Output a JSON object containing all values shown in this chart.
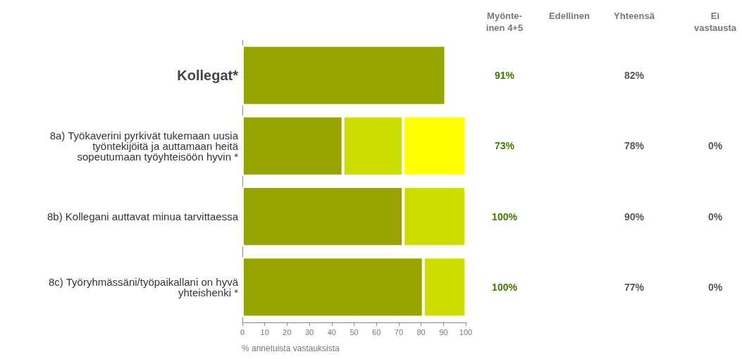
{
  "chart_data": [
    {
      "type": "bar",
      "orientation": "horizontal",
      "stacked": true,
      "xlabel": "% annetuista vastauksista",
      "categories": [
        "Kollegat*",
        "8a) Työkaverini pyrkivät tukemaan uusia\ntyöntekijöitä ja auttamaan heitä\nsopeutumaan työyhteisöön hyvin *",
        "8b) Kollegani auttavat minua tarvittaessa",
        "8c) Työryhmässäni/työpaikallani on hyvä\nyhteishenki *"
      ],
      "series": [
        {
          "color": "#99a300",
          "values": [
            91,
            45,
            72,
            81
          ]
        },
        {
          "color": "#ccdd00",
          "values": [
            null,
            27,
            28,
            19
          ]
        },
        {
          "color": "#ffff00",
          "values": [
            null,
            28,
            null,
            null
          ]
        }
      ],
      "xlim": [
        0,
        100
      ],
      "xticks": [
        0,
        10,
        20,
        30,
        40,
        50,
        60,
        70,
        80,
        90,
        100
      ],
      "grid": false
    },
    {
      "type": "other",
      "categories": [
        "Myönte-\ninen 4+5",
        "Edellinen",
        "Yhteensä",
        "Ei\nvastausta"
      ],
      "cell_labels": [
        [
          "91%",
          null,
          "82%",
          null
        ],
        [
          "73%",
          null,
          "78%",
          "0%"
        ],
        [
          "100%",
          null,
          "90%",
          "0%"
        ],
        [
          "100%",
          null,
          "77%",
          "0%"
        ]
      ]
    }
  ]
}
